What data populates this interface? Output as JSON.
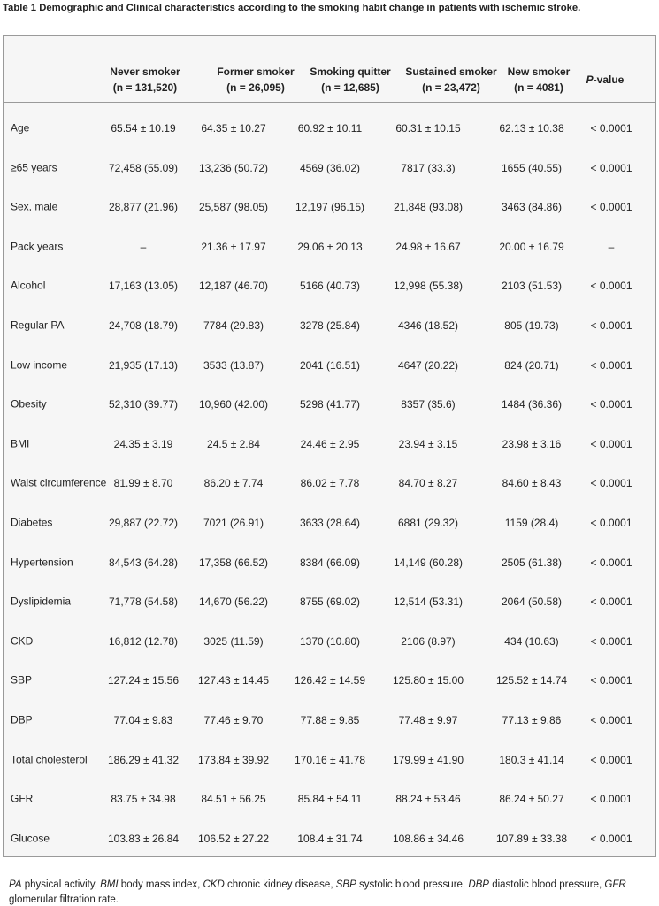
{
  "title": "Table 1 Demographic and Clinical characteristics according to the smoking habit change in patients with ischemic stroke.",
  "table": {
    "columns": [
      [
        "Never smoker",
        "(n = 131,520)"
      ],
      [
        "Former smoker",
        "(n = 26,095)"
      ],
      [
        "Smoking quitter",
        "(n = 12,685)"
      ],
      [
        "Sustained smoker",
        "(n = 23,472)"
      ],
      [
        "New smoker",
        "(n = 4081)"
      ],
      {
        "italic": "P",
        "text": "-value"
      }
    ],
    "rows": [
      [
        "Age",
        "65.54 ± 10.19",
        "64.35 ± 10.27",
        "60.92 ± 10.11",
        "60.31 ± 10.15",
        "62.13 ± 10.38",
        "< 0.0001"
      ],
      [
        "≥65 years",
        "72,458 (55.09)",
        "13,236 (50.72)",
        "4569 (36.02)",
        "7817 (33.3)",
        "1655 (40.55)",
        "< 0.0001"
      ],
      [
        "Sex, male",
        "28,877 (21.96)",
        "25,587 (98.05)",
        "12,197 (96.15)",
        "21,848 (93.08)",
        "3463 (84.86)",
        "< 0.0001"
      ],
      [
        "Pack years",
        "–",
        "21.36 ± 17.97",
        "29.06 ± 20.13",
        "24.98 ± 16.67",
        "20.00 ± 16.79",
        "–"
      ],
      [
        "Alcohol",
        "17,163 (13.05)",
        "12,187 (46.70)",
        "5166 (40.73)",
        "12,998 (55.38)",
        "2103 (51.53)",
        "< 0.0001"
      ],
      [
        "Regular PA",
        "24,708 (18.79)",
        "7784 (29.83)",
        "3278 (25.84)",
        "4346 (18.52)",
        "805 (19.73)",
        "< 0.0001"
      ],
      [
        "Low income",
        "21,935 (17.13)",
        "3533 (13.87)",
        "2041 (16.51)",
        "4647 (20.22)",
        "824 (20.71)",
        "< 0.0001"
      ],
      [
        "Obesity",
        "52,310 (39.77)",
        "10,960 (42.00)",
        "5298 (41.77)",
        "8357 (35.6)",
        "1484 (36.36)",
        "< 0.0001"
      ],
      [
        "BMI",
        "24.35 ± 3.19",
        "24.5 ± 2.84",
        "24.46 ± 2.95",
        "23.94 ± 3.15",
        "23.98 ± 3.16",
        "< 0.0001"
      ],
      [
        "Waist circumference",
        "81.99 ± 8.70",
        "86.20 ± 7.74",
        "86.02 ± 7.78",
        "84.70 ± 8.27",
        "84.60 ± 8.43",
        "< 0.0001"
      ],
      [
        "Diabetes",
        "29,887 (22.72)",
        "7021 (26.91)",
        "3633 (28.64)",
        "6881 (29.32)",
        "1159 (28.4)",
        "< 0.0001"
      ],
      [
        "Hypertension",
        "84,543 (64.28)",
        "17,358 (66.52)",
        "8384 (66.09)",
        "14,149 (60.28)",
        "2505 (61.38)",
        "< 0.0001"
      ],
      [
        "Dyslipidemia",
        "71,778 (54.58)",
        "14,670 (56.22)",
        "8755 (69.02)",
        "12,514 (53.31)",
        "2064 (50.58)",
        "< 0.0001"
      ],
      [
        "CKD",
        "16,812 (12.78)",
        "3025 (11.59)",
        "1370 (10.80)",
        "2106 (8.97)",
        "434 (10.63)",
        "< 0.0001"
      ],
      [
        "SBP",
        "127.24 ± 15.56",
        "127.43 ± 14.45",
        "126.42 ± 14.59",
        "125.80 ± 15.00",
        "125.52 ± 14.74",
        "< 0.0001"
      ],
      [
        "DBP",
        "77.04 ± 9.83",
        "77.46 ± 9.70",
        "77.88 ± 9.85",
        "77.48 ± 9.97",
        "77.13 ± 9.86",
        "< 0.0001"
      ],
      [
        "Total cholesterol",
        "186.29 ± 41.32",
        "173.84 ± 39.92",
        "170.16 ± 41.78",
        "179.99 ± 41.90",
        "180.3 ± 41.14",
        "< 0.0001"
      ],
      [
        "GFR",
        "83.75 ± 34.98",
        "84.51 ± 56.25",
        "85.84 ± 54.11",
        "88.24 ± 53.46",
        "86.24 ± 50.27",
        "< 0.0001"
      ],
      [
        "Glucose",
        "103.83 ± 26.84",
        "106.52 ± 27.22",
        "108.4 ± 31.74",
        "108.86 ± 34.46",
        "107.89 ± 33.38",
        "< 0.0001"
      ]
    ]
  },
  "footnote": [
    [
      "PA",
      "physical activity,"
    ],
    [
      "BMI",
      "body mass index,"
    ],
    [
      "CKD",
      "chronic kidney disease,"
    ],
    [
      "SBP",
      "systolic blood pressure,"
    ],
    [
      "DBP",
      "diastolic blood pressure,"
    ],
    [
      "GFR",
      "glomerular filtration rate."
    ]
  ]
}
